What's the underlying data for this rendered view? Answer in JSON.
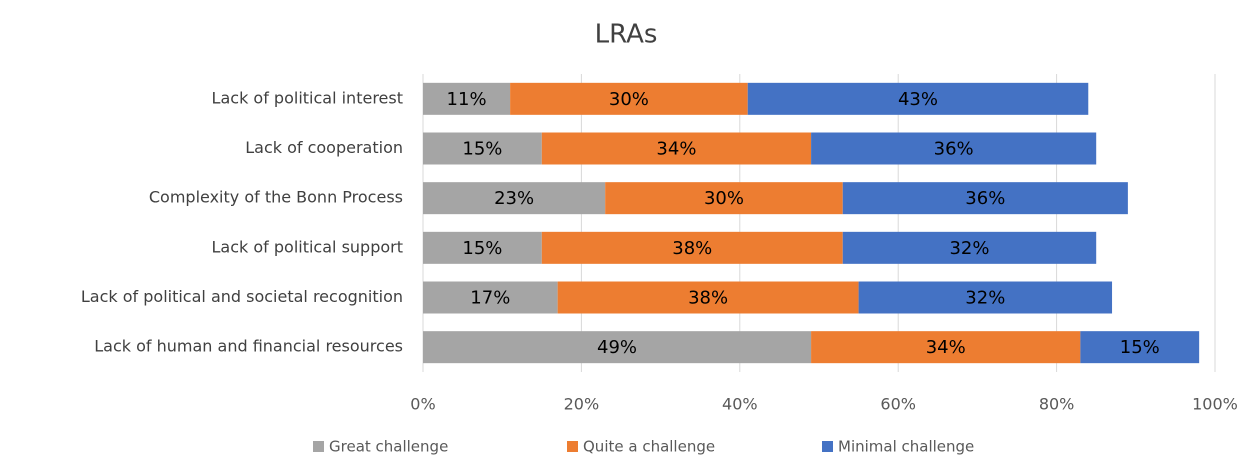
{
  "chart_data": {
    "type": "stacked_bar_horizontal",
    "title": "LRAs",
    "categories": [
      "Lack of political interest",
      "Lack of cooperation",
      "Complexity of the Bonn Process",
      "Lack of political support",
      "Lack of political and societal recognition",
      "Lack of human and financial resources"
    ],
    "series": [
      {
        "name": "Great challenge",
        "color": "#a5a5a5",
        "values": [
          11,
          15,
          23,
          15,
          17,
          49
        ],
        "value_labels": [
          "11%",
          "15%",
          "23%",
          "15%",
          "17%",
          "49%"
        ]
      },
      {
        "name": "Quite a challenge",
        "color": "#ed7d31",
        "values": [
          30,
          34,
          30,
          38,
          38,
          34
        ],
        "value_labels": [
          "30%",
          "34%",
          "30%",
          "38%",
          "38%",
          "34%"
        ]
      },
      {
        "name": "Minimal challenge",
        "color": "#4472c4",
        "values": [
          43,
          36,
          36,
          32,
          32,
          15
        ],
        "value_labels": [
          "43%",
          "36%",
          "36%",
          "32%",
          "32%",
          "15%"
        ]
      }
    ],
    "xlim": [
      0,
      100
    ],
    "xticks": [
      {
        "value": 0,
        "label": "0%"
      },
      {
        "value": 20,
        "label": "20%"
      },
      {
        "value": 40,
        "label": "40%"
      },
      {
        "value": 60,
        "label": "60%"
      },
      {
        "value": 80,
        "label": "80%"
      },
      {
        "value": 100,
        "label": "100%"
      }
    ],
    "grid": true,
    "legend": "bottom"
  }
}
